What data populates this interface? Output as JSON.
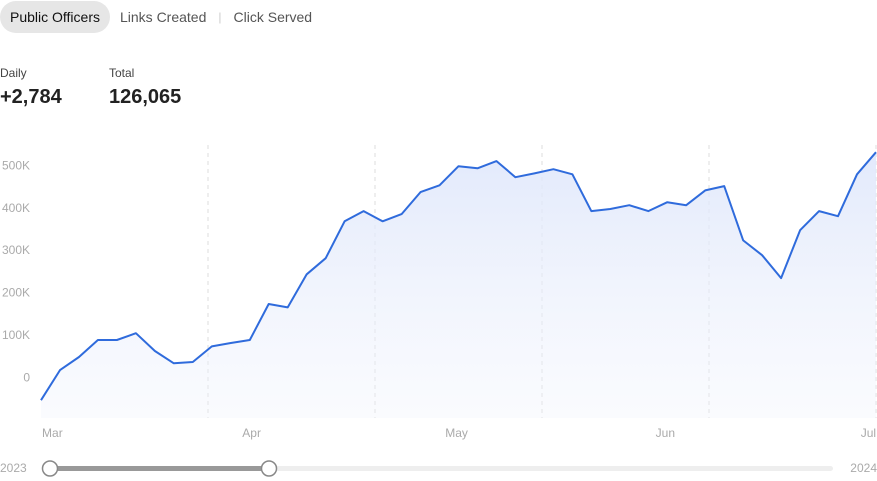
{
  "tabs": [
    "Public Officers",
    "Links Created",
    "Click Served"
  ],
  "stats": [
    {
      "label": "Daily",
      "value": "+2,784"
    },
    {
      "label": "Total",
      "value": "126,065"
    }
  ],
  "range": {
    "start": "2023",
    "end": "2024"
  },
  "chart_data": {
    "type": "area",
    "color": "#2f6bdc",
    "x": [
      0,
      1,
      2,
      3,
      4,
      5,
      6,
      7,
      8,
      9,
      10,
      11,
      12,
      13,
      14,
      15,
      16,
      17,
      18,
      19,
      20,
      21,
      22,
      23,
      24,
      25,
      26,
      27,
      28,
      29,
      30,
      31,
      32,
      33,
      34,
      35,
      36,
      37,
      38,
      39,
      40,
      41,
      42,
      43,
      44
    ],
    "values": [
      -52000,
      19000,
      50000,
      90000,
      90000,
      106000,
      64000,
      35000,
      38000,
      75000,
      83000,
      90000,
      175000,
      167000,
      245000,
      283000,
      370000,
      394000,
      370000,
      387000,
      439000,
      455000,
      500000,
      495000,
      512000,
      474000,
      483000,
      493000,
      481000,
      394000,
      399000,
      408000,
      394000,
      415000,
      408000,
      443000,
      453000,
      325000,
      290000,
      236000,
      349000,
      394000,
      382000,
      481000,
      533000
    ],
    "xlim": [
      0,
      44
    ],
    "xticks": [
      {
        "value": 0.6,
        "label": "Mar"
      },
      {
        "value": 11.1,
        "label": "Apr"
      },
      {
        "value": 21.9,
        "label": "May"
      },
      {
        "value": 32.9,
        "label": "Jun"
      },
      {
        "value": 43.6,
        "label": "Jul"
      }
    ],
    "ylim": [
      -94000,
      550000
    ],
    "yticks": [
      0,
      {
        "value": 100000,
        "label": "100K"
      },
      {
        "value": 200000,
        "label": "200K"
      },
      {
        "value": 300000,
        "label": "300K"
      },
      {
        "value": 400000,
        "label": "400K"
      },
      {
        "value": 500000,
        "label": "500K"
      }
    ]
  }
}
